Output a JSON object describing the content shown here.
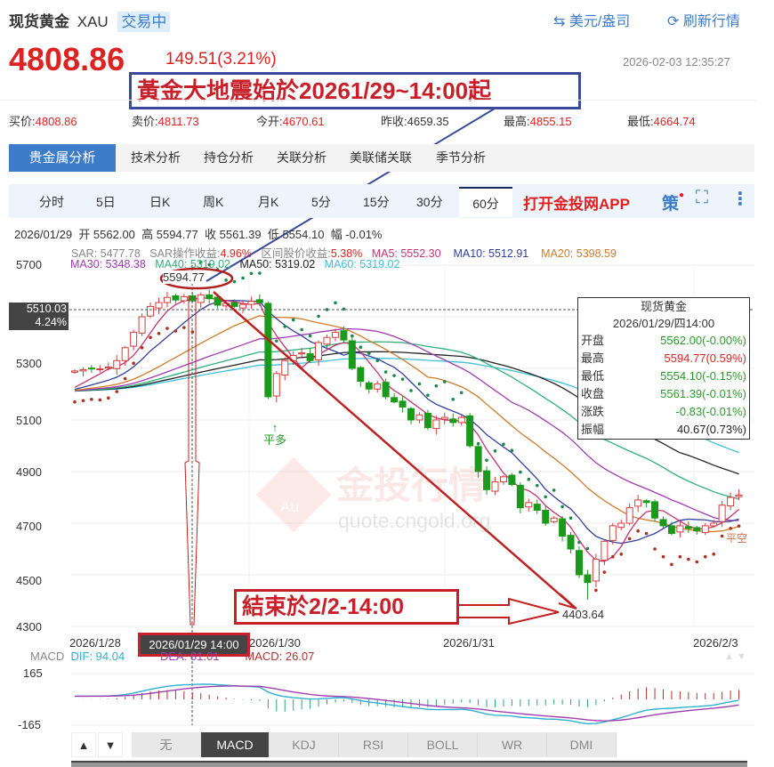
{
  "header": {
    "title": "现货黄金",
    "symbol": "XAU",
    "status": "交易中",
    "currency_btn": "美元/盎司",
    "refresh_btn": "刷新行情",
    "price": "4808.86",
    "change": "149.51(3.21%)",
    "timestamp": "2026-02-03 12:35:27"
  },
  "annotations": {
    "start": "黃金大地震始於20261/29~14:00起",
    "end": "結束於2/2-14:00",
    "peak": "5594.77",
    "trough": "4403.64"
  },
  "stats": [
    {
      "label": "买价:",
      "value": "4808.86"
    },
    {
      "label": "卖价:",
      "value": "4811.73"
    },
    {
      "label": "今开:",
      "value": "4670.61"
    },
    {
      "label": "昨收:",
      "value": "4659.35"
    },
    {
      "label": "最高:",
      "value": "4855.15"
    },
    {
      "label": "最低:",
      "value": "4664.74"
    }
  ],
  "tabs": [
    "贵金属分析",
    "技术分析",
    "持仓分析",
    "关联分析",
    "美联储关联",
    "季节分析"
  ],
  "periods": [
    "分时",
    "5日",
    "日K",
    "周K",
    "月K",
    "5分",
    "15分",
    "30分",
    "60分"
  ],
  "active_period": "60分",
  "app_link": "打开金投网APP",
  "strategy_icon": "策",
  "info_line": {
    "date": "2026/01/29",
    "open": "开 5562.00",
    "high": "高 5594.77",
    "close": "收 5561.39",
    "low": "低 5554.10",
    "amp": "幅 -0.01%"
  },
  "indicators": {
    "sar": "SAR: 5477.78",
    "sar_label": "SAR操作收益:",
    "sar_val": "4.96%",
    "range_label": "区间股价收益:",
    "range_val": "5.38%",
    "ma5": "MA5: 5552.30",
    "ma10": "MA10: 5512.91",
    "ma20": "MA20: 5398.59",
    "ma30": "MA30: 5348.38",
    "ma40": "MA40: 5319.02",
    "ma50": "MA50: 5319.02",
    "ma60": "MA60: 5319.02"
  },
  "crosshair": {
    "price": "5510.03",
    "pct": "4.24%",
    "date": "2026/01/29 14:00"
  },
  "tooltip": {
    "title": "现货黄金",
    "date": "2026/01/29/四14:00",
    "rows": [
      {
        "k": "开盘",
        "v": "5562.00(-0.00%)",
        "c": "green"
      },
      {
        "k": "最高",
        "v": "5594.77(0.59%)",
        "c": "red"
      },
      {
        "k": "最低",
        "v": "5554.10(-0.15%)",
        "c": "green"
      },
      {
        "k": "收盘",
        "v": "5561.39(-0.01%)",
        "c": "green"
      },
      {
        "k": "涨跌",
        "v": "-0.83(-0.01%)",
        "c": "green"
      },
      {
        "k": "振幅",
        "v": "40.67(0.73%)",
        "c": "black"
      }
    ]
  },
  "signals": {
    "buy_close": "平多",
    "sell_close": "平空"
  },
  "watermark": {
    "text": "金投行情",
    "url": "quote.cngold.org",
    "logo": "Au"
  },
  "macd": {
    "name": "MACD",
    "dif": "DIF: 94.04",
    "dea": "DEA: 81.01",
    "macd": "MACD: 26.07",
    "ticks": [
      "165",
      "-165"
    ]
  },
  "bottom_tabs": [
    "无",
    "MACD",
    "KDJ",
    "RSI",
    "BOLL",
    "WR",
    "DMI"
  ],
  "active_bottom_tab": "MACD",
  "colors": {
    "up": "#d43c3c",
    "down": "#1a9a1a",
    "ma5": "#c8336e",
    "ma10": "#3040a0",
    "ma20": "#d07a2a",
    "ma30": "#a03ab0",
    "ma40": "#2fb07a",
    "ma50": "#222222",
    "ma60": "#40c0d8",
    "accent": "#3d7cc9"
  },
  "chart_data": {
    "type": "candlestick",
    "interval": "60分",
    "ylim": [
      4300,
      5700
    ],
    "yticks": [
      "5700",
      "5300",
      "5100",
      "4900",
      "4700",
      "4500",
      "4300"
    ],
    "xticks": [
      "2026/1/28",
      "2026/1/30",
      "2026/1/31",
      "2026/2/3"
    ],
    "closes": [
      5290,
      5295,
      5300,
      5298,
      5305,
      5330,
      5380,
      5440,
      5500,
      5540,
      5555,
      5575,
      5565,
      5578,
      5561.39,
      5585,
      5570,
      5545,
      5552,
      5540,
      5548,
      5560,
      5555,
      5190,
      5280,
      5330,
      5350,
      5360,
      5330,
      5400,
      5420,
      5440,
      5410,
      5300,
      5250,
      5220,
      5240,
      5190,
      5170,
      5150,
      5100,
      5120,
      5070,
      5100,
      5110,
      5090,
      5110,
      5000,
      4900,
      4830,
      4860,
      4880,
      4850,
      4760,
      4780,
      4750,
      4700,
      4720,
      4650,
      4600,
      4500,
      4470,
      4560,
      4630,
      4690,
      4700,
      4760,
      4790,
      4780,
      4720,
      4690,
      4660,
      4690,
      4680,
      4670,
      4690,
      4700,
      4770,
      4800,
      4808.86
    ]
  }
}
